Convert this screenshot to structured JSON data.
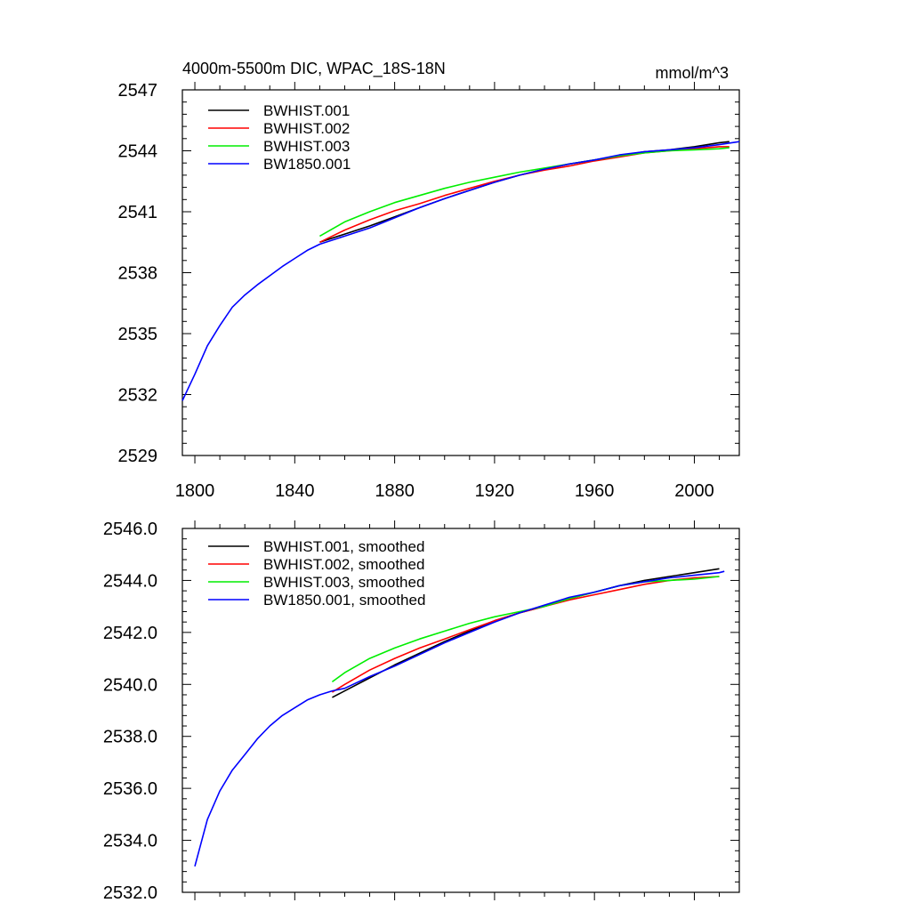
{
  "chart_data": [
    {
      "type": "line",
      "title": "4000m-5500m DIC, WPAC_18S-18N",
      "units": "mmol/m^3",
      "xlim": [
        1795,
        2018
      ],
      "ylim": [
        2529,
        2547
      ],
      "x_ticks": [
        1800,
        1840,
        1880,
        1920,
        1960,
        2000
      ],
      "x_tick_labels": [
        "1800",
        "1840",
        "1880",
        "1920",
        "1960",
        "2000"
      ],
      "y_ticks": [
        2529,
        2532,
        2535,
        2538,
        2541,
        2544,
        2547
      ],
      "y_tick_labels": [
        "2529",
        "2532",
        "2535",
        "2538",
        "2541",
        "2544",
        "2547"
      ],
      "legend_position": "top-left",
      "grid": false,
      "series": [
        {
          "name": "BWHIST.001",
          "color": "#000000",
          "x": [
            1850,
            1860,
            1870,
            1880,
            1890,
            1900,
            1910,
            1920,
            1930,
            1940,
            1950,
            1960,
            1970,
            1980,
            1990,
            2000,
            2010,
            2014
          ],
          "y": [
            2539.5,
            2539.9,
            2540.3,
            2540.75,
            2541.2,
            2541.65,
            2542.05,
            2542.45,
            2542.8,
            2543.1,
            2543.35,
            2543.55,
            2543.75,
            2543.95,
            2544.05,
            2544.2,
            2544.4,
            2544.45
          ]
        },
        {
          "name": "BWHIST.002",
          "color": "#ff0000",
          "x": [
            1850,
            1860,
            1870,
            1880,
            1890,
            1900,
            1910,
            1920,
            1930,
            1940,
            1950,
            1960,
            1970,
            1980,
            1990,
            2000,
            2010,
            2014
          ],
          "y": [
            2539.5,
            2540.1,
            2540.6,
            2541.05,
            2541.4,
            2541.8,
            2542.15,
            2542.5,
            2542.8,
            2543.05,
            2543.25,
            2543.5,
            2543.7,
            2543.9,
            2544.0,
            2544.1,
            2544.2,
            2544.2
          ]
        },
        {
          "name": "BWHIST.003",
          "color": "#00ee00",
          "x": [
            1850,
            1860,
            1870,
            1880,
            1890,
            1900,
            1910,
            1920,
            1930,
            1940,
            1950,
            1960,
            1970,
            1980,
            1990,
            2000,
            2010,
            2014
          ],
          "y": [
            2539.8,
            2540.5,
            2541.0,
            2541.45,
            2541.8,
            2542.15,
            2542.45,
            2542.7,
            2542.95,
            2543.15,
            2543.35,
            2543.55,
            2543.75,
            2543.9,
            2544.0,
            2544.05,
            2544.1,
            2544.15
          ]
        },
        {
          "name": "BW1850.001",
          "color": "#0000ff",
          "x": [
            1795,
            1800,
            1805,
            1810,
            1815,
            1820,
            1825,
            1830,
            1835,
            1840,
            1845,
            1850,
            1860,
            1870,
            1880,
            1890,
            1900,
            1910,
            1920,
            1930,
            1940,
            1950,
            1960,
            1970,
            1980,
            1990,
            2000,
            2010,
            2018
          ],
          "y": [
            2531.7,
            2533.0,
            2534.4,
            2535.4,
            2536.3,
            2536.9,
            2537.4,
            2537.85,
            2538.3,
            2538.7,
            2539.1,
            2539.4,
            2539.8,
            2540.2,
            2540.7,
            2541.2,
            2541.65,
            2542.05,
            2542.45,
            2542.8,
            2543.1,
            2543.35,
            2543.55,
            2543.8,
            2543.95,
            2544.05,
            2544.15,
            2544.3,
            2544.45
          ]
        }
      ]
    },
    {
      "type": "line",
      "title": "",
      "xlim": [
        1795,
        2018
      ],
      "ylim": [
        2532.0,
        2546.0
      ],
      "x_ticks": [
        1800,
        1840,
        1880,
        1920,
        1960,
        2000
      ],
      "y_ticks": [
        2532.0,
        2534.0,
        2536.0,
        2538.0,
        2540.0,
        2542.0,
        2544.0,
        2546.0
      ],
      "y_tick_labels": [
        "2532.0",
        "2534.0",
        "2536.0",
        "2538.0",
        "2540.0",
        "2542.0",
        "2544.0",
        "2546.0"
      ],
      "legend_position": "top-left",
      "grid": false,
      "series": [
        {
          "name": "BWHIST.001, smoothed",
          "color": "#000000",
          "x": [
            1855,
            1860,
            1870,
            1880,
            1890,
            1900,
            1910,
            1920,
            1930,
            1940,
            1950,
            1960,
            1970,
            1980,
            1990,
            2000,
            2010
          ],
          "y": [
            2539.5,
            2539.75,
            2540.25,
            2540.75,
            2541.2,
            2541.65,
            2542.05,
            2542.45,
            2542.75,
            2543.0,
            2543.3,
            2543.55,
            2543.8,
            2544.0,
            2544.15,
            2544.3,
            2544.45
          ]
        },
        {
          "name": "BWHIST.002, smoothed",
          "color": "#ff0000",
          "x": [
            1855,
            1860,
            1870,
            1880,
            1890,
            1900,
            1910,
            1920,
            1930,
            1940,
            1950,
            1960,
            1970,
            1980,
            1990,
            2000,
            2010
          ],
          "y": [
            2539.7,
            2540.0,
            2540.55,
            2541.0,
            2541.4,
            2541.75,
            2542.1,
            2542.45,
            2542.75,
            2543.0,
            2543.25,
            2543.45,
            2543.65,
            2543.85,
            2544.0,
            2544.1,
            2544.15
          ]
        },
        {
          "name": "BWHIST.003, smoothed",
          "color": "#00ee00",
          "x": [
            1855,
            1860,
            1870,
            1880,
            1890,
            1900,
            1910,
            1920,
            1930,
            1940,
            1950,
            1960,
            1970,
            1980,
            1990,
            2000,
            2010
          ],
          "y": [
            2540.1,
            2540.45,
            2541.0,
            2541.4,
            2541.75,
            2542.05,
            2542.35,
            2542.6,
            2542.8,
            2543.0,
            2543.3,
            2543.55,
            2543.8,
            2543.95,
            2544.0,
            2544.05,
            2544.15
          ]
        },
        {
          "name": "BW1850.001, smoothed",
          "color": "#0000ff",
          "x": [
            1800,
            1805,
            1810,
            1815,
            1820,
            1825,
            1830,
            1835,
            1840,
            1845,
            1850,
            1855,
            1860,
            1870,
            1880,
            1890,
            1900,
            1910,
            1920,
            1930,
            1940,
            1950,
            1960,
            1970,
            1980,
            1990,
            2000,
            2010,
            2012
          ],
          "y": [
            2533.0,
            2534.8,
            2535.9,
            2536.7,
            2537.3,
            2537.9,
            2538.4,
            2538.8,
            2539.1,
            2539.4,
            2539.6,
            2539.75,
            2539.85,
            2540.3,
            2540.7,
            2541.15,
            2541.6,
            2542.0,
            2542.4,
            2542.75,
            2543.05,
            2543.35,
            2543.55,
            2543.8,
            2543.95,
            2544.1,
            2544.2,
            2544.3,
            2544.35
          ]
        }
      ]
    }
  ]
}
